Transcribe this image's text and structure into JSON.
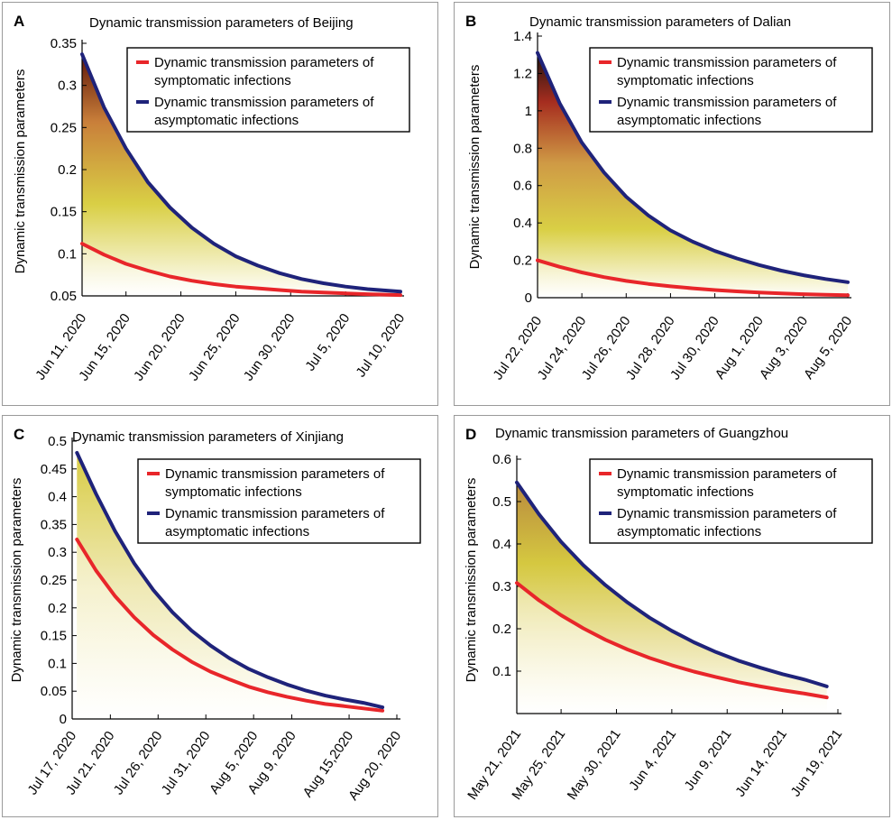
{
  "colors": {
    "symptomatic": "#e8262a",
    "asymptomatic": "#1f237a",
    "axis": "#000000",
    "panel_border": "#9a9a9a"
  },
  "chart_data": [
    {
      "panel_label": "A",
      "type": "line",
      "title": "Dynamic transmission parameters of Beijing",
      "ylabel": "Dynamic transmission parameters",
      "xlabel": "",
      "ylim": [
        0.05,
        0.35
      ],
      "yticks": [
        "0.05",
        "0.1",
        "0.15",
        "0.2",
        "0.25",
        "0.3",
        "0.35"
      ],
      "xlim": [
        0,
        29
      ],
      "xticks": [
        {
          "label": "Jun 11, 2020",
          "x": 0
        },
        {
          "label": "Jun 15, 2020",
          "x": 4
        },
        {
          "label": "Jun 20, 2020",
          "x": 9
        },
        {
          "label": "Jun 25, 2020",
          "x": 14
        },
        {
          "label": "Jun 30, 2020",
          "x": 19
        },
        {
          "label": "Jul 5, 2020",
          "x": 24
        },
        {
          "label": "Jul 10, 2020",
          "x": 29
        }
      ],
      "x": [
        0,
        2,
        4,
        6,
        8,
        10,
        12,
        14,
        16,
        18,
        20,
        22,
        24,
        26,
        29
      ],
      "series": [
        {
          "name": "Dynamic transmission parameters of symptomatic infections",
          "key": "symptomatic",
          "values": [
            0.112,
            0.099,
            0.088,
            0.08,
            0.073,
            0.068,
            0.064,
            0.061,
            0.059,
            0.057,
            0.055,
            0.054,
            0.053,
            0.052,
            0.051
          ]
        },
        {
          "name": "Dynamic transmission parameters of asymptomatic infections",
          "key": "asymptomatic",
          "values": [
            0.337,
            0.274,
            0.225,
            0.185,
            0.155,
            0.131,
            0.112,
            0.097,
            0.086,
            0.077,
            0.07,
            0.065,
            0.061,
            0.058,
            0.055
          ]
        }
      ],
      "fill_stops": [
        {
          "offset": 0.0,
          "color": "#5e1608"
        },
        {
          "offset": 0.28,
          "color": "#c97f3a"
        },
        {
          "offset": 0.62,
          "color": "#d9cf45"
        },
        {
          "offset": 1.0,
          "color": "#ffffff"
        }
      ]
    },
    {
      "panel_label": "B",
      "type": "line",
      "title": "Dynamic transmission parameters of Dalian",
      "ylabel": "Dynamic transmission parameters",
      "xlabel": "",
      "ylim": [
        0,
        1.4
      ],
      "yticks": [
        "0",
        "0.2",
        "0.4",
        "0.6",
        "0.8",
        "1",
        "1.2",
        "1.4"
      ],
      "xlim": [
        0,
        14
      ],
      "xticks": [
        {
          "label": "Jul 22, 2020",
          "x": 0
        },
        {
          "label": "Jul 24, 2020",
          "x": 2
        },
        {
          "label": "Jul 26, 2020",
          "x": 4
        },
        {
          "label": "Jul 28, 2020",
          "x": 6
        },
        {
          "label": "Jul 30, 2020",
          "x": 8
        },
        {
          "label": "Aug 1, 2020",
          "x": 10
        },
        {
          "label": "Aug 3, 2020",
          "x": 12
        },
        {
          "label": "Aug 5, 2020",
          "x": 14
        }
      ],
      "x": [
        0,
        1,
        2,
        3,
        4,
        5,
        6,
        7,
        8,
        9,
        10,
        11,
        12,
        13,
        14
      ],
      "series": [
        {
          "name": "Dynamic transmission parameters of symptomatic infections",
          "key": "symptomatic",
          "values": [
            0.2,
            0.165,
            0.135,
            0.11,
            0.09,
            0.074,
            0.061,
            0.05,
            0.041,
            0.034,
            0.028,
            0.023,
            0.019,
            0.016,
            0.013
          ]
        },
        {
          "name": "Dynamic transmission parameters of asymptomatic infections",
          "key": "asymptomatic",
          "values": [
            1.31,
            1.04,
            0.83,
            0.67,
            0.54,
            0.44,
            0.36,
            0.3,
            0.25,
            0.21,
            0.175,
            0.145,
            0.12,
            0.1,
            0.083
          ]
        }
      ],
      "fill_stops": [
        {
          "offset": 0.0,
          "color": "#1e1410"
        },
        {
          "offset": 0.2,
          "color": "#a62d1f"
        },
        {
          "offset": 0.45,
          "color": "#cf9a45"
        },
        {
          "offset": 0.72,
          "color": "#d9cf45"
        },
        {
          "offset": 1.0,
          "color": "#ffffff"
        }
      ]
    },
    {
      "panel_label": "C",
      "type": "line",
      "title": "Dynamic transmission parameters of Xinjiang",
      "ylabel": "Dynamic transmission parameters",
      "xlabel": "",
      "ylim": [
        0,
        0.5
      ],
      "yticks": [
        "0",
        "0.05",
        "0.1",
        "0.15",
        "0.2",
        "0.25",
        "0.3",
        "0.35",
        "0.4",
        "0.45",
        "0.5"
      ],
      "xlim": [
        0,
        34
      ],
      "xticks": [
        {
          "label": "Jul 17, 2020",
          "x": 0
        },
        {
          "label": "Jul 21, 2020",
          "x": 4
        },
        {
          "label": "Jul 26, 2020",
          "x": 9
        },
        {
          "label": "Jul 31, 2020",
          "x": 14
        },
        {
          "label": "Aug 5, 2020",
          "x": 19
        },
        {
          "label": "Aug 9, 2020",
          "x": 23
        },
        {
          "label": "Aug 15,2020",
          "x": 29
        },
        {
          "label": "Aug 20, 2020",
          "x": 34
        }
      ],
      "x": [
        0.5,
        2.5,
        4.5,
        6.5,
        8.5,
        10.5,
        12.5,
        14.5,
        16.5,
        18.5,
        20.5,
        22.5,
        24.5,
        26.5,
        28.5,
        30.5,
        32.5
      ],
      "series": [
        {
          "name": "Dynamic transmission parameters of symptomatic infections",
          "key": "symptomatic",
          "values": [
            0.323,
            0.267,
            0.221,
            0.183,
            0.151,
            0.125,
            0.103,
            0.085,
            0.071,
            0.058,
            0.048,
            0.04,
            0.033,
            0.027,
            0.023,
            0.019,
            0.015
          ]
        },
        {
          "name": "Dynamic transmission parameters of asymptomatic infections",
          "key": "asymptomatic",
          "values": [
            0.479,
            0.405,
            0.338,
            0.28,
            0.232,
            0.192,
            0.159,
            0.132,
            0.109,
            0.09,
            0.075,
            0.062,
            0.051,
            0.042,
            0.035,
            0.029,
            0.021
          ]
        }
      ],
      "fill_stops": [
        {
          "offset": 0.0,
          "color": "#d8cc45"
        },
        {
          "offset": 0.5,
          "color": "#efe9b4"
        },
        {
          "offset": 1.0,
          "color": "#ffffff"
        }
      ]
    },
    {
      "panel_label": "D",
      "type": "line",
      "title": "Dynamic transmission parameters of Guangzhou",
      "ylabel": "Dynamic transmission parameters",
      "xlabel": "",
      "ylim": [
        0,
        0.6
      ],
      "yticks": [
        "0.1",
        "0.2",
        "0.3",
        "0.4",
        "0.5",
        "0.6"
      ],
      "xlim": [
        0,
        29
      ],
      "xticks": [
        {
          "label": "May 21, 2021",
          "x": 0
        },
        {
          "label": "May 25, 2021",
          "x": 4
        },
        {
          "label": "May 30, 2021",
          "x": 9
        },
        {
          "label": "Jun 4, 2021",
          "x": 14
        },
        {
          "label": "Jun 9, 2021",
          "x": 19
        },
        {
          "label": "Jun 14, 2021",
          "x": 24
        },
        {
          "label": "Jun 19, 2021",
          "x": 29
        }
      ],
      "x": [
        0,
        2,
        4,
        6,
        8,
        10,
        12,
        14,
        16,
        18,
        20,
        22,
        24,
        26,
        28
      ],
      "series": [
        {
          "name": "Dynamic transmission parameters of symptomatic infections",
          "key": "symptomatic",
          "values": [
            0.308,
            0.267,
            0.232,
            0.201,
            0.174,
            0.151,
            0.131,
            0.114,
            0.099,
            0.086,
            0.074,
            0.064,
            0.055,
            0.047,
            0.038
          ]
        },
        {
          "name": "Dynamic transmission parameters of asymptomatic infections",
          "key": "asymptomatic",
          "values": [
            0.545,
            0.47,
            0.405,
            0.35,
            0.303,
            0.262,
            0.226,
            0.195,
            0.168,
            0.145,
            0.125,
            0.108,
            0.093,
            0.08,
            0.064
          ]
        }
      ],
      "fill_stops": [
        {
          "offset": 0.0,
          "color": "#b98a3e"
        },
        {
          "offset": 0.35,
          "color": "#d5c840"
        },
        {
          "offset": 0.7,
          "color": "#ece4a8"
        },
        {
          "offset": 1.0,
          "color": "#ffffff"
        }
      ]
    }
  ]
}
